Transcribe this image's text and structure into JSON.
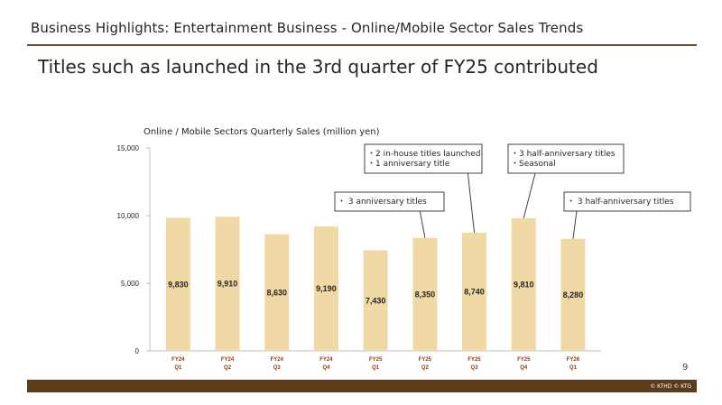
{
  "header": {
    "title": "Business Highlights: Entertainment Business - Online/Mobile Sector Sales Trends"
  },
  "subtitle": "Titles such as launched in the 3rd quarter of FY25 contributed",
  "page_number": "9",
  "footer": {
    "copyright": "© KTHD © KTG"
  },
  "colors": {
    "bar": "#f1d9a5",
    "accent": "#5e3c1a",
    "tick_label": "#8b3a0e"
  },
  "chart_data": {
    "type": "bar",
    "title": "Online / Mobile Sectors Quarterly Sales (million yen)",
    "categories": [
      [
        "FY24",
        "Q1"
      ],
      [
        "FY24",
        "Q2"
      ],
      [
        "FY24",
        "Q3"
      ],
      [
        "FY24",
        "Q4"
      ],
      [
        "FY25",
        "Q1"
      ],
      [
        "FY25",
        "Q2"
      ],
      [
        "FY25",
        "Q3"
      ],
      [
        "FY25",
        "Q4"
      ],
      [
        "FY26",
        "Q1"
      ]
    ],
    "values": [
      9830,
      9910,
      8630,
      9190,
      7430,
      8350,
      8740,
      9810,
      8280
    ],
    "data_labels": [
      "9,830",
      "9,910",
      "8,630",
      "9,190",
      "7,430",
      "8,350",
      "8,740",
      "9,810",
      "8,280"
    ],
    "ylim": [
      0,
      15000
    ],
    "yticks": [
      0,
      5000,
      10000,
      15000
    ],
    "ytick_labels": [
      "0",
      "5,000",
      "10,000",
      "15,000"
    ],
    "grid": false,
    "annotations": [
      {
        "target": 5,
        "lines": [
          "・ 3 anniversary titles"
        ]
      },
      {
        "target": 6,
        "lines": [
          "・2 in-house titles launched",
          "・1 anniversary title"
        ]
      },
      {
        "target": 7,
        "lines": [
          "・3 half-anniversary titles",
          "・Seasonal"
        ]
      },
      {
        "target": 8,
        "lines": [
          "・ 3 half-anniversary titles"
        ]
      }
    ]
  }
}
